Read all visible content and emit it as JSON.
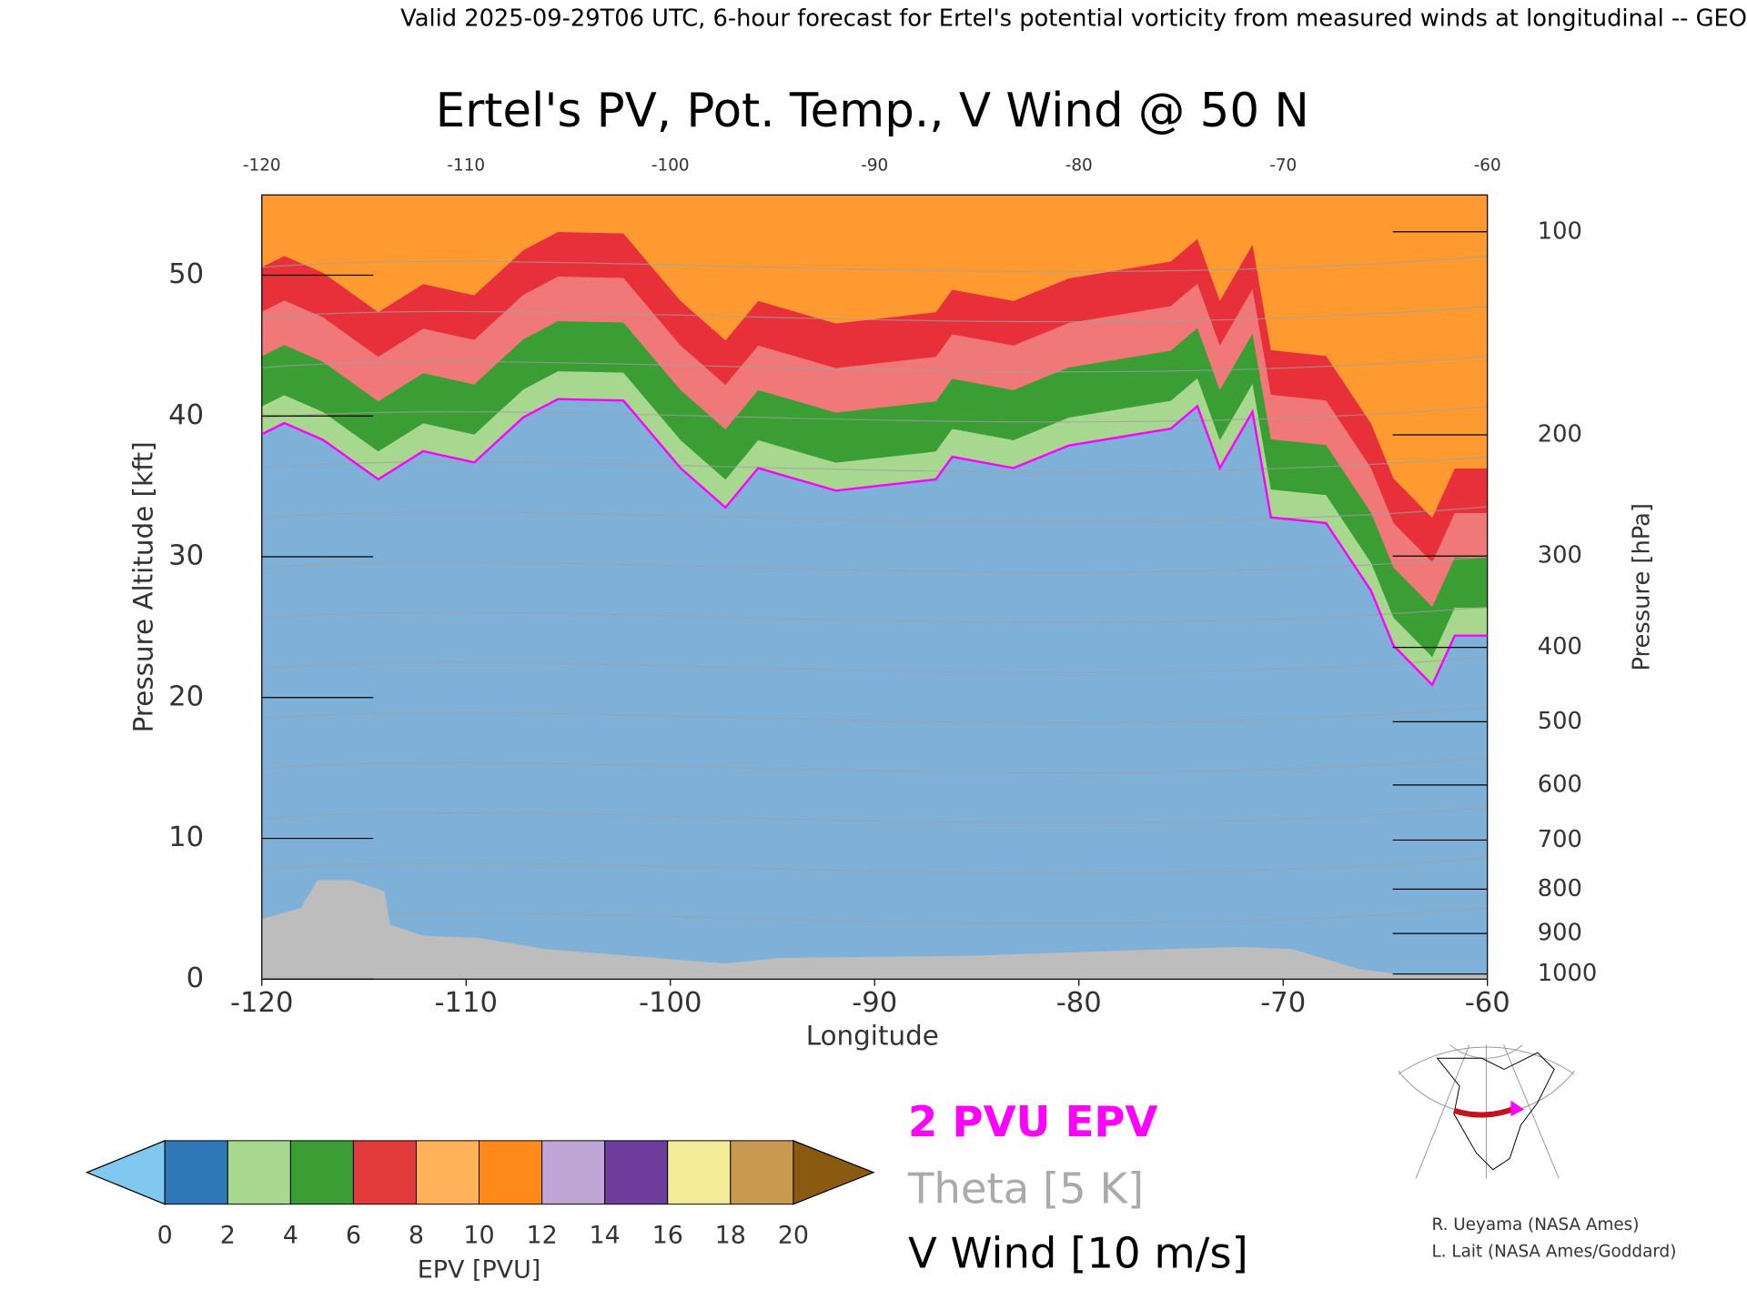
{
  "chart_data": {
    "type": "line",
    "header": "Valid 2025-09-29T06 UTC, 6-hour forecast for Ertel's potential vorticity from measured winds at longitudinal -- GEO",
    "title": "Ertel's PV, Pot. Temp., V Wind @ 50 N",
    "xlabel": "Longitude",
    "ylabel": "Pressure Altitude [kft]",
    "y2label": "Pressure [hPa]",
    "xlim": [
      -120,
      -60
    ],
    "xticks": [
      -120,
      -110,
      -100,
      -90,
      -80,
      -70,
      -60
    ],
    "ylim": [
      0,
      55.7
    ],
    "yticks": [
      0,
      10,
      20,
      30,
      40,
      50
    ],
    "y2ticks": [
      100,
      200,
      300,
      400,
      500,
      600,
      700,
      800,
      900,
      1000
    ],
    "series": [
      {
        "name": "2 PVU EPV",
        "color": "#ff00ff",
        "x": [
          -120,
          -118.9,
          -117,
          -114.3,
          -112.1,
          -109.6,
          -107.2,
          -105.5,
          -102.3,
          -99.5,
          -97.3,
          -95.7,
          -91.9,
          -87,
          -86.2,
          -83.2,
          -80.5,
          -75.5,
          -74.2,
          -73.1,
          -71.5,
          -70.6,
          -67.9,
          -65.7,
          -64.6,
          -62.7,
          -61.6,
          -60
        ],
        "values": [
          38.7,
          39.5,
          38.3,
          35.5,
          37.5,
          36.7,
          39.9,
          41.2,
          41.1,
          36.3,
          33.5,
          36.3,
          34.7,
          35.5,
          37.1,
          36.3,
          37.9,
          39.1,
          40.7,
          36.3,
          40.3,
          32.8,
          32.4,
          27.6,
          23.7,
          20.9,
          24.4,
          24.4
        ]
      }
    ],
    "legend_extra": [
      {
        "name": "Theta [5 K]",
        "color": "#aaaaaa"
      },
      {
        "name": "V Wind [10 m/s]",
        "color": "#000000"
      }
    ],
    "colorbar": {
      "label": "EPV [PVU]",
      "ticks": [
        0,
        2,
        4,
        6,
        8,
        10,
        12,
        14,
        16,
        18,
        20
      ],
      "colors": [
        "#2f78b8",
        "#a8d890",
        "#3a9e34",
        "#e23a3a",
        "#ffb25a",
        "#ff8a1a",
        "#bfa6d6",
        "#6e3c9c",
        "#f2ec98",
        "#c89a50"
      ],
      "under": "#80c8f0",
      "over": "#8a5a10"
    },
    "credits": [
      "R. Ueyama (NASA Ames)",
      "L. Lait (NASA Ames/Goddard)"
    ]
  }
}
